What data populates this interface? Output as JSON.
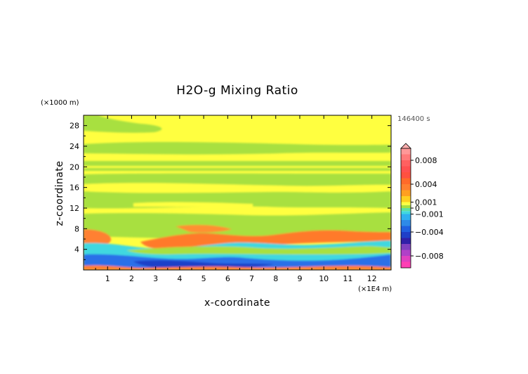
{
  "chart_data": {
    "type": "heatmap",
    "title": "H2O-g Mixing Ratio",
    "xlabel": "x-coordinate",
    "ylabel": "z-coordinate",
    "x_unit": "(×1E4 m)",
    "y_unit": "(×1000 m)",
    "time_label": "146400 s",
    "xlim": [
      0,
      12.8
    ],
    "ylim": [
      0,
      30
    ],
    "x_ticks": [
      1,
      2,
      3,
      4,
      5,
      6,
      7,
      8,
      9,
      10,
      11,
      12
    ],
    "y_ticks": [
      4,
      8,
      12,
      16,
      20,
      24,
      28
    ],
    "colorbar": {
      "levels": [
        {
          "value": -0.01,
          "color": "#ff3fb4"
        },
        {
          "value": -0.009,
          "color": "#e040c0"
        },
        {
          "value": -0.008,
          "color": "#b040c8"
        },
        {
          "value": -0.007,
          "color": "#8040c0"
        },
        {
          "value": -0.006,
          "color": "#3020a8"
        },
        {
          "value": -0.005,
          "color": "#1f3fc8"
        },
        {
          "value": -0.004,
          "color": "#2060e0"
        },
        {
          "value": -0.003,
          "color": "#2e8ae8"
        },
        {
          "value": -0.002,
          "color": "#2fb0f0"
        },
        {
          "value": -0.001,
          "color": "#40d8e0"
        },
        {
          "value": -0.0005,
          "color": "#5fe0a0"
        },
        {
          "value": 0,
          "color": "#a8e040"
        },
        {
          "value": 0.0005,
          "color": "#ffff40"
        },
        {
          "value": 0.001,
          "color": "#ffd020"
        },
        {
          "value": 0.002,
          "color": "#ffa020"
        },
        {
          "value": 0.003,
          "color": "#ff8030"
        },
        {
          "value": 0.004,
          "color": "#ff6a2a"
        },
        {
          "value": 0.005,
          "color": "#ff5040"
        },
        {
          "value": 0.006,
          "color": "#ff5050"
        },
        {
          "value": 0.007,
          "color": "#ff6060"
        },
        {
          "value": 0.008,
          "color": "#ff7a7a"
        },
        {
          "value": 0.009,
          "color": "#ff9898"
        },
        {
          "value": 0.01,
          "color": "#ffb0b0"
        }
      ],
      "labels": [
        {
          "text": "0.008",
          "value": 0.008
        },
        {
          "text": "0.004",
          "value": 0.004
        },
        {
          "text": "0.001",
          "value": 0.001
        },
        {
          "text": "0",
          "value": 0
        },
        {
          "text": "−0.001",
          "value": -0.001
        },
        {
          "text": "−0.004",
          "value": -0.004
        },
        {
          "text": "−0.008",
          "value": -0.008
        }
      ]
    },
    "field_bands": [
      {
        "name": "background",
        "color": "#ffff40",
        "z": [
          0,
          30
        ]
      },
      {
        "name": "upper-green",
        "color": "#a8e040",
        "z": [
          21.5,
          23.3
        ]
      },
      {
        "name": "upper-green-2",
        "color": "#a8e040",
        "z": [
          19.2,
          20.2
        ]
      },
      {
        "name": "mid-green",
        "color": "#a8e040",
        "z": [
          12.3,
          18.6
        ]
      },
      {
        "name": "mid-yellow",
        "color": "#ffff40",
        "z": [
          14.2,
          15.2
        ]
      },
      {
        "name": "low-green",
        "color": "#a8e040",
        "z": [
          6.0,
          10.5
        ]
      },
      {
        "name": "orange-layer",
        "color": "#ff8030",
        "z": [
          5.5,
          7.4
        ]
      },
      {
        "name": "cyan-layer",
        "color": "#40d8e0",
        "z": [
          2.0,
          5.2
        ]
      },
      {
        "name": "blue-layer",
        "color": "#2060e0",
        "z": [
          0.3,
          2.0
        ]
      }
    ]
  }
}
